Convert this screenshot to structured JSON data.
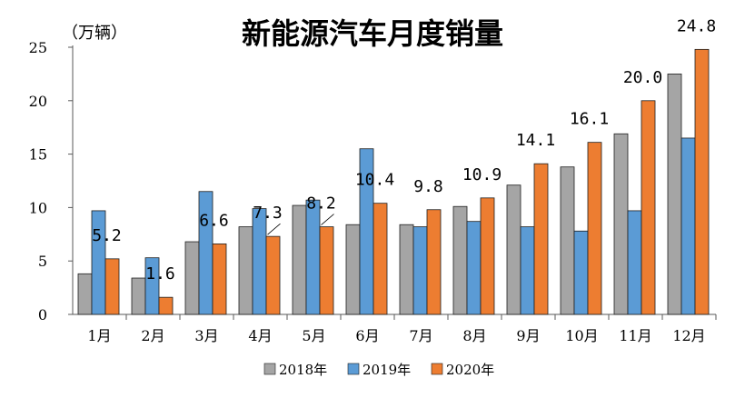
{
  "chart_data": {
    "type": "bar",
    "title": "新能源汽车月度销量",
    "ylabel": "（万辆）",
    "xlabel": "",
    "ylim": [
      0,
      25
    ],
    "yticks": [
      0,
      5,
      10,
      15,
      20,
      25
    ],
    "categories": [
      "1月",
      "2月",
      "3月",
      "4月",
      "5月",
      "6月",
      "7月",
      "8月",
      "9月",
      "10月",
      "11月",
      "12月"
    ],
    "series": [
      {
        "name": "2018年",
        "color": "#a5a5a5",
        "values": [
          3.8,
          3.4,
          6.8,
          8.2,
          10.2,
          8.4,
          8.4,
          10.1,
          12.1,
          13.8,
          16.9,
          22.5
        ]
      },
      {
        "name": "2019年",
        "color": "#5b9bd5",
        "values": [
          9.7,
          5.3,
          11.5,
          9.9,
          10.7,
          15.5,
          8.2,
          8.7,
          8.2,
          7.8,
          9.7,
          16.5
        ]
      },
      {
        "name": "2020年",
        "color": "#ed7d31",
        "values": [
          5.2,
          1.6,
          6.6,
          7.3,
          8.2,
          10.4,
          9.8,
          10.9,
          14.1,
          16.1,
          20.0,
          24.8
        ]
      }
    ],
    "data_labels": [
      "5.2",
      "1.6",
      "6.6",
      "7.3",
      "8.2",
      "10.4",
      "9.8",
      "10.9",
      "14.1",
      "16.1",
      "20.0",
      "24.8"
    ],
    "legend_position": "bottom",
    "grid": false
  }
}
